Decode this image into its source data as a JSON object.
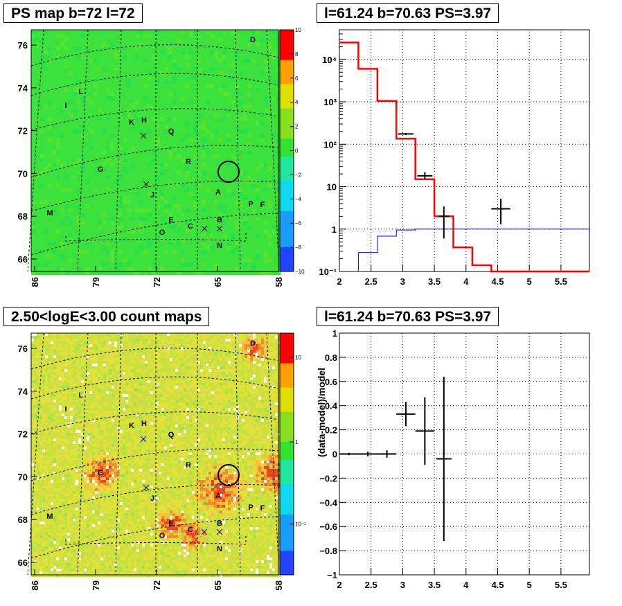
{
  "panels": {
    "ps_map": {
      "title": "PS map b=72 l=72"
    },
    "spectrum": {
      "title": "l=61.24 b=70.63 PS=3.97"
    },
    "count_map": {
      "title": "2.50<logE<3.00 count maps"
    },
    "residual": {
      "title": "l=61.24 b=70.63 PS=3.97"
    }
  },
  "chart_data": [
    {
      "type": "heatmap",
      "name_in_figure": "PS map b=72 l=72",
      "x_ticks": [
        "86",
        "79",
        "72",
        "65",
        "58"
      ],
      "y_ticks": [
        "76",
        "74",
        "72",
        "70",
        "68",
        "66"
      ],
      "colorbar_ticks": [
        "10",
        "8",
        "6",
        "4",
        "2",
        "0",
        "−2",
        "−4",
        "−6",
        "−8",
        "−10"
      ],
      "colorbar_range": [
        -10,
        10
      ],
      "source_labels": [
        "D",
        "L",
        "I",
        "K",
        "H",
        "Q",
        "R",
        "G",
        "J",
        "A",
        "P",
        "F",
        "M",
        "E",
        "C",
        "B",
        "O",
        "N"
      ],
      "marked_position": {
        "l": 61.24,
        "b": 70.63
      },
      "colors": {
        "background": "#3be23b"
      }
    },
    {
      "type": "line",
      "name_in_figure": "l=61.24 b=70.63 PS=3.97",
      "x_ticks": [
        "2",
        "2.5",
        "3",
        "3.5",
        "4",
        "4.5",
        "5",
        "5.5"
      ],
      "y_ticks": [
        "10⁻¹",
        "1",
        "10",
        "10²",
        "10³",
        "10⁴"
      ],
      "xlim": [
        2,
        5.95
      ],
      "ylim": [
        0.1,
        50000
      ],
      "yscale": "log",
      "grid": true,
      "model_total": {
        "color": "#ff0000",
        "bins": [
          [
            2.0,
            2.3,
            25000
          ],
          [
            2.3,
            2.6,
            6000
          ],
          [
            2.6,
            2.9,
            1050
          ],
          [
            2.9,
            3.2,
            135
          ],
          [
            3.2,
            3.5,
            15
          ],
          [
            3.5,
            3.8,
            2.0
          ],
          [
            3.8,
            4.1,
            0.37
          ],
          [
            4.1,
            4.4,
            0.14
          ],
          [
            4.4,
            5.95,
            0.1
          ]
        ]
      },
      "model_component": {
        "color": "#0000ff",
        "bins": [
          [
            2.3,
            2.6,
            0.28
          ],
          [
            2.6,
            2.9,
            0.68
          ],
          [
            2.9,
            3.2,
            0.95
          ],
          [
            3.2,
            5.95,
            1.0
          ]
        ]
      },
      "data_points": [
        {
          "x": 3.05,
          "xerr": 0.12,
          "y": 175,
          "ylo": 165,
          "yhi": 185
        },
        {
          "x": 3.35,
          "xerr": 0.12,
          "y": 18,
          "ylo": 15,
          "yhi": 22
        },
        {
          "x": 3.65,
          "xerr": 0.08,
          "y": 2.0,
          "ylo": 0.6,
          "yhi": 3.4
        },
        {
          "x": 4.55,
          "xerr": 0.15,
          "y": 3.0,
          "ylo": 1.3,
          "yhi": 5.2
        }
      ]
    },
    {
      "type": "heatmap",
      "name_in_figure": "2.50<logE<3.00 count maps",
      "x_ticks": [
        "86",
        "79",
        "72",
        "65",
        "58"
      ],
      "y_ticks": [
        "76",
        "74",
        "72",
        "70",
        "68",
        "66"
      ],
      "colorbar_ticks": [
        "10",
        "1",
        "10⁻¹"
      ],
      "colorbar_scale": "log",
      "source_labels": [
        "D",
        "L",
        "I",
        "K",
        "H",
        "Q",
        "R",
        "G",
        "J",
        "A",
        "P",
        "F",
        "M",
        "E",
        "C",
        "B",
        "O",
        "N"
      ],
      "marked_position": {
        "l": 61.24,
        "b": 70.63
      },
      "colors": {
        "background": "#d6e23b",
        "hot": "#f05a3a"
      }
    },
    {
      "type": "scatter",
      "name_in_figure": "l=61.24 b=70.63 PS=3.97",
      "ylabel": "(data-model)/model",
      "x_ticks": [
        "2",
        "2.5",
        "3",
        "3.5",
        "4",
        "4.5",
        "5",
        "5.5"
      ],
      "y_ticks": [
        "1",
        "0.8",
        "0.6",
        "0.4",
        "0.2",
        "0",
        "−0.2",
        "−0.4",
        "−0.6",
        "−0.8",
        "−1"
      ],
      "xlim": [
        2,
        5.95
      ],
      "ylim": [
        -1,
        1
      ],
      "grid": true,
      "data_points": [
        {
          "x": 2.15,
          "xerr": 0.15,
          "y": 0.0,
          "yerr": 0.01
        },
        {
          "x": 2.45,
          "xerr": 0.15,
          "y": 0.0,
          "yerr": 0.02
        },
        {
          "x": 2.75,
          "xerr": 0.15,
          "y": 0.0,
          "yerr": 0.03
        },
        {
          "x": 3.05,
          "xerr": 0.15,
          "y": 0.33,
          "yerr": 0.1
        },
        {
          "x": 3.35,
          "xerr": 0.15,
          "y": 0.19,
          "yerr": 0.28
        },
        {
          "x": 3.65,
          "xerr": 0.12,
          "y": -0.04,
          "yerr": 0.68
        }
      ]
    }
  ]
}
